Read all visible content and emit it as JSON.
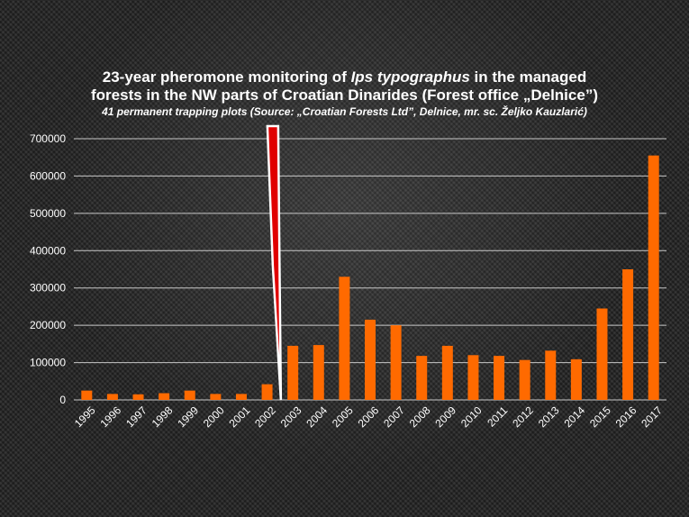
{
  "chart_data": {
    "type": "bar",
    "title_pre": "23-year pheromone monitoring of ",
    "title_italic": "Ips typographus",
    "title_post": " in the managed",
    "title_line2": "forests in the NW parts of Croatian Dinarides (Forest office „Delnice”)",
    "subtitle": "41 permanent trapping plots (Source: „Croatian Forests Ltd”, Delnice, mr. sc. Željko Kauzlarić)",
    "xlabel": "",
    "ylabel": "",
    "ylim": [
      0,
      700000
    ],
    "yticks": [
      "0",
      "100000",
      "200000",
      "300000",
      "400000",
      "500000",
      "600000",
      "700000"
    ],
    "grid": true,
    "categories": [
      "1995",
      "1996",
      "1997",
      "1998",
      "1999",
      "2000",
      "2001",
      "2002",
      "2003",
      "2004",
      "2005",
      "2006",
      "2007",
      "2008",
      "2009",
      "2010",
      "2011",
      "2012",
      "2013",
      "2014",
      "2015",
      "2016",
      "2017"
    ],
    "values": [
      25000,
      16000,
      15000,
      18000,
      25000,
      16000,
      16000,
      42000,
      145000,
      147000,
      330000,
      215000,
      200000,
      118000,
      145000,
      120000,
      118000,
      107000,
      132000,
      109000,
      245000,
      350000,
      655000
    ],
    "colors": {
      "bar": "#ff6a00",
      "grid": "#c8c8c8",
      "marker": "#e00000"
    }
  }
}
